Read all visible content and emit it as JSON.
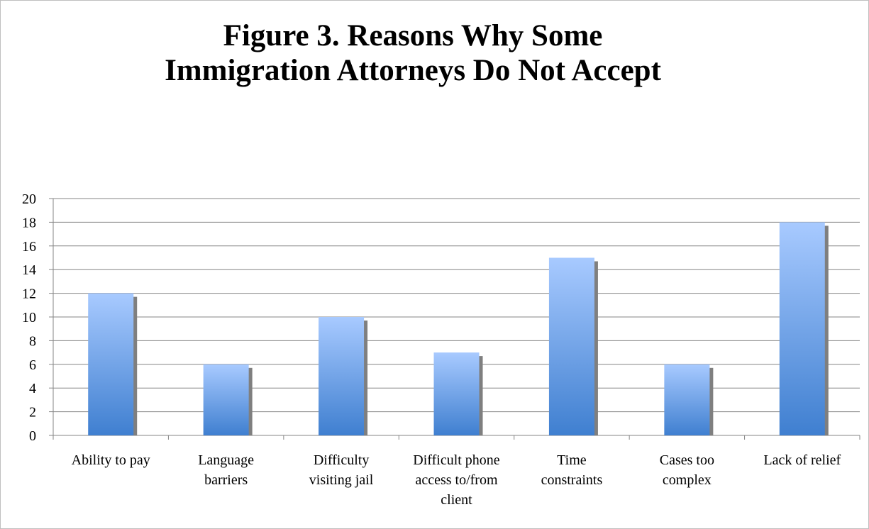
{
  "chart_data": {
    "type": "bar",
    "title_lines": [
      "Figure 3. Reasons Why Some",
      "Immigration Attorneys Do Not Accept"
    ],
    "categories": [
      "Ability to pay",
      "Language barriers",
      "Difficulty visiting jail",
      "Difficult phone access to/from client",
      "Time constraints",
      "Cases too complex",
      "Lack of relief"
    ],
    "category_label_lines": [
      [
        "Ability to pay"
      ],
      [
        "Language",
        "barriers"
      ],
      [
        "Difficulty",
        "visiting jail"
      ],
      [
        "Difficult phone",
        "access to/from",
        "client"
      ],
      [
        "Time",
        "constraints"
      ],
      [
        "Cases too",
        "complex"
      ],
      [
        "Lack of relief"
      ]
    ],
    "values": [
      12,
      6,
      10,
      7,
      15,
      6,
      18
    ],
    "ylim": [
      0,
      20
    ],
    "yticks": [
      0,
      2,
      4,
      6,
      8,
      10,
      12,
      14,
      16,
      18,
      20
    ],
    "grid": true,
    "legend": "none",
    "bar_gradient": [
      "#a8caff",
      "#3f7fd0"
    ],
    "bar_shadow": "#7f7f7f"
  }
}
